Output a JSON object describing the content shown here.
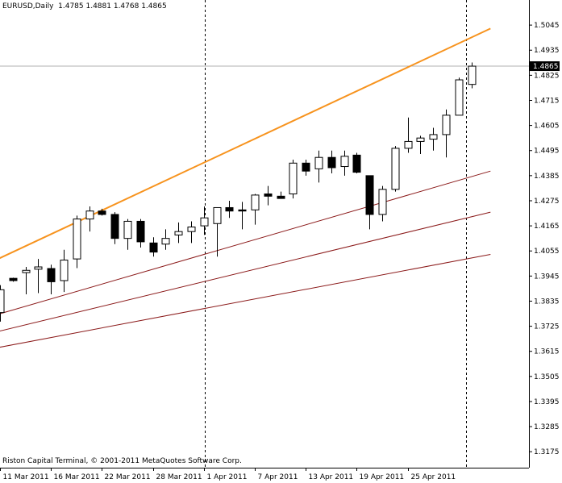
{
  "header": {
    "symbol": "EURUSD,Daily",
    "ohlc": "1.4785 1.4881 1.4768 1.4865"
  },
  "footer": {
    "copyright": "Riston Capital Terminal, © 2001-2011 MetaQuotes Software Corp."
  },
  "current_price_label": "1.4865",
  "colors": {
    "background": "#ffffff",
    "bull_fill": "#ffffff",
    "bear_fill": "#000000",
    "candle_outline": "#000000",
    "trendline_main": "#f7931e",
    "channel_lines": "#8b1a1a",
    "period_separator": "#000000",
    "bid_line": "#b0b0b0"
  },
  "chart_data": {
    "type": "candlestick",
    "title": "EURUSD,Daily",
    "ylim": [
      1.3105,
      1.5155
    ],
    "y_ticks": [
      "1.5045",
      "1.4935",
      "1.4825",
      "1.4715",
      "1.4605",
      "1.4495",
      "1.4385",
      "1.4275",
      "1.4165",
      "1.4055",
      "1.3945",
      "1.3835",
      "1.3725",
      "1.3615",
      "1.3505",
      "1.3395",
      "1.3285",
      "1.3175"
    ],
    "x_ticks": [
      "11 Mar 2011",
      "16 Mar 2011",
      "22 Mar 2011",
      "28 Mar 2011",
      "1 Apr 2011",
      "7 Apr 2011",
      "13 Apr 2011",
      "19 Apr 2011",
      "25 Apr 2011"
    ],
    "candles": [
      {
        "o": 1.3785,
        "h": 1.3905,
        "l": 1.3745,
        "c": 1.3885
      },
      {
        "o": 1.3935,
        "h": 1.3938,
        "l": 1.392,
        "c": 1.3925
      },
      {
        "o": 1.396,
        "h": 1.3985,
        "l": 1.3865,
        "c": 1.397
      },
      {
        "o": 1.3975,
        "h": 1.402,
        "l": 1.387,
        "c": 1.3985
      },
      {
        "o": 1.3978,
        "h": 1.3995,
        "l": 1.3865,
        "c": 1.392
      },
      {
        "o": 1.3925,
        "h": 1.406,
        "l": 1.3875,
        "c": 1.4015
      },
      {
        "o": 1.402,
        "h": 1.421,
        "l": 1.398,
        "c": 1.4195
      },
      {
        "o": 1.4195,
        "h": 1.425,
        "l": 1.414,
        "c": 1.423
      },
      {
        "o": 1.423,
        "h": 1.424,
        "l": 1.421,
        "c": 1.4215
      },
      {
        "o": 1.4215,
        "h": 1.4225,
        "l": 1.4085,
        "c": 1.411
      },
      {
        "o": 1.411,
        "h": 1.4195,
        "l": 1.406,
        "c": 1.4185
      },
      {
        "o": 1.4185,
        "h": 1.4195,
        "l": 1.407,
        "c": 1.4095
      },
      {
        "o": 1.409,
        "h": 1.4115,
        "l": 1.403,
        "c": 1.405
      },
      {
        "o": 1.4085,
        "h": 1.415,
        "l": 1.406,
        "c": 1.411
      },
      {
        "o": 1.4125,
        "h": 1.418,
        "l": 1.409,
        "c": 1.414
      },
      {
        "o": 1.414,
        "h": 1.4185,
        "l": 1.409,
        "c": 1.416
      },
      {
        "o": 1.4165,
        "h": 1.425,
        "l": 1.4125,
        "c": 1.42
      },
      {
        "o": 1.4175,
        "h": 1.4245,
        "l": 1.403,
        "c": 1.4245
      },
      {
        "o": 1.4245,
        "h": 1.4275,
        "l": 1.42,
        "c": 1.423
      },
      {
        "o": 1.4235,
        "h": 1.427,
        "l": 1.415,
        "c": 1.423
      },
      {
        "o": 1.4235,
        "h": 1.4305,
        "l": 1.417,
        "c": 1.43
      },
      {
        "o": 1.4305,
        "h": 1.434,
        "l": 1.4255,
        "c": 1.4295
      },
      {
        "o": 1.4295,
        "h": 1.4315,
        "l": 1.4285,
        "c": 1.4285
      },
      {
        "o": 1.4305,
        "h": 1.4455,
        "l": 1.4285,
        "c": 1.444
      },
      {
        "o": 1.444,
        "h": 1.4455,
        "l": 1.4385,
        "c": 1.4405
      },
      {
        "o": 1.4415,
        "h": 1.4495,
        "l": 1.4355,
        "c": 1.4465
      },
      {
        "o": 1.4465,
        "h": 1.4495,
        "l": 1.4395,
        "c": 1.442
      },
      {
        "o": 1.4425,
        "h": 1.4495,
        "l": 1.4385,
        "c": 1.447
      },
      {
        "o": 1.4475,
        "h": 1.4485,
        "l": 1.4395,
        "c": 1.44
      },
      {
        "o": 1.4385,
        "h": 1.4385,
        "l": 1.415,
        "c": 1.4215
      },
      {
        "o": 1.4215,
        "h": 1.434,
        "l": 1.4185,
        "c": 1.4325
      },
      {
        "o": 1.4325,
        "h": 1.4515,
        "l": 1.4315,
        "c": 1.4505
      },
      {
        "o": 1.4505,
        "h": 1.464,
        "l": 1.4485,
        "c": 1.4535
      },
      {
        "o": 1.4535,
        "h": 1.456,
        "l": 1.448,
        "c": 1.455
      },
      {
        "o": 1.4545,
        "h": 1.4595,
        "l": 1.4495,
        "c": 1.4565
      },
      {
        "o": 1.4565,
        "h": 1.4675,
        "l": 1.4465,
        "c": 1.465
      },
      {
        "o": 1.465,
        "h": 1.4815,
        "l": 1.465,
        "c": 1.4805
      },
      {
        "o": 1.4785,
        "h": 1.4881,
        "l": 1.4768,
        "c": 1.4865
      }
    ],
    "trendlines": [
      {
        "name": "upper",
        "x0": -0.3,
        "y0": 1.4016,
        "x1": 38.5,
        "y1": 1.503
      },
      {
        "name": "channel-1",
        "x0": -0.3,
        "y0": 1.3775,
        "x1": 38.5,
        "y1": 1.4405
      },
      {
        "name": "channel-2",
        "x0": -0.3,
        "y0": 1.37,
        "x1": 38.5,
        "y1": 1.4225
      },
      {
        "name": "channel-3",
        "x0": -0.3,
        "y0": 1.363,
        "x1": 38.5,
        "y1": 1.404
      }
    ],
    "period_separators": [
      15,
      35.5
    ],
    "bid_line": 1.4865,
    "grid": false
  }
}
